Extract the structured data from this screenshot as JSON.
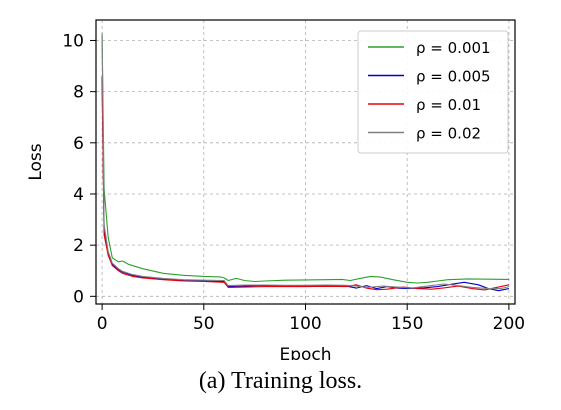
{
  "caption": "(a) Training loss.",
  "chart_data": {
    "type": "line",
    "xlabel": "Epoch",
    "ylabel": "Loss",
    "xlim": [
      -3,
      203
    ],
    "ylim": [
      -0.3,
      10.8
    ],
    "xticks": [
      0,
      50,
      100,
      150,
      200
    ],
    "yticks": [
      0,
      2,
      4,
      6,
      8,
      10
    ],
    "grid": true,
    "legend_position": "upper right",
    "series": [
      {
        "name": "ρ = 0.001",
        "color": "#2ca02c",
        "points": [
          [
            0,
            10.2
          ],
          [
            1,
            4.2
          ],
          [
            3,
            2.3
          ],
          [
            5,
            1.5
          ],
          [
            8,
            1.35
          ],
          [
            10,
            1.38
          ],
          [
            13,
            1.25
          ],
          [
            20,
            1.08
          ],
          [
            30,
            0.9
          ],
          [
            40,
            0.82
          ],
          [
            50,
            0.78
          ],
          [
            58,
            0.76
          ],
          [
            60,
            0.72
          ],
          [
            62,
            0.62
          ],
          [
            66,
            0.7
          ],
          [
            70,
            0.62
          ],
          [
            75,
            0.58
          ],
          [
            80,
            0.6
          ],
          [
            90,
            0.63
          ],
          [
            100,
            0.64
          ],
          [
            110,
            0.65
          ],
          [
            118,
            0.66
          ],
          [
            122,
            0.62
          ],
          [
            128,
            0.72
          ],
          [
            132,
            0.78
          ],
          [
            137,
            0.75
          ],
          [
            143,
            0.65
          ],
          [
            150,
            0.55
          ],
          [
            155,
            0.52
          ],
          [
            160,
            0.55
          ],
          [
            165,
            0.6
          ],
          [
            170,
            0.65
          ],
          [
            180,
            0.68
          ],
          [
            190,
            0.67
          ],
          [
            200,
            0.66
          ]
        ]
      },
      {
        "name": "ρ = 0.005",
        "color": "#0000cc",
        "points": [
          [
            0,
            8.6
          ],
          [
            1,
            2.6
          ],
          [
            3,
            1.7
          ],
          [
            5,
            1.25
          ],
          [
            8,
            1.05
          ],
          [
            10,
            0.95
          ],
          [
            15,
            0.82
          ],
          [
            20,
            0.75
          ],
          [
            30,
            0.68
          ],
          [
            40,
            0.62
          ],
          [
            50,
            0.6
          ],
          [
            60,
            0.58
          ],
          [
            62,
            0.38
          ],
          [
            70,
            0.4
          ],
          [
            80,
            0.42
          ],
          [
            90,
            0.41
          ],
          [
            100,
            0.41
          ],
          [
            110,
            0.42
          ],
          [
            120,
            0.4
          ],
          [
            125,
            0.32
          ],
          [
            130,
            0.42
          ],
          [
            135,
            0.3
          ],
          [
            140,
            0.38
          ],
          [
            145,
            0.32
          ],
          [
            150,
            0.3
          ],
          [
            158,
            0.33
          ],
          [
            165,
            0.38
          ],
          [
            170,
            0.45
          ],
          [
            178,
            0.55
          ],
          [
            185,
            0.45
          ],
          [
            190,
            0.3
          ],
          [
            195,
            0.22
          ],
          [
            200,
            0.3
          ]
        ]
      },
      {
        "name": "ρ = 0.01",
        "color": "#e8000b",
        "points": [
          [
            0,
            8.4
          ],
          [
            1,
            2.4
          ],
          [
            3,
            1.6
          ],
          [
            5,
            1.2
          ],
          [
            8,
            1.0
          ],
          [
            10,
            0.9
          ],
          [
            15,
            0.78
          ],
          [
            20,
            0.72
          ],
          [
            30,
            0.65
          ],
          [
            40,
            0.6
          ],
          [
            50,
            0.58
          ],
          [
            60,
            0.55
          ],
          [
            62,
            0.35
          ],
          [
            70,
            0.36
          ],
          [
            80,
            0.38
          ],
          [
            90,
            0.38
          ],
          [
            100,
            0.38
          ],
          [
            110,
            0.39
          ],
          [
            120,
            0.38
          ],
          [
            125,
            0.45
          ],
          [
            130,
            0.32
          ],
          [
            135,
            0.26
          ],
          [
            140,
            0.28
          ],
          [
            148,
            0.36
          ],
          [
            155,
            0.3
          ],
          [
            162,
            0.28
          ],
          [
            168,
            0.33
          ],
          [
            175,
            0.4
          ],
          [
            182,
            0.3
          ],
          [
            188,
            0.25
          ],
          [
            194,
            0.35
          ],
          [
            200,
            0.45
          ]
        ]
      },
      {
        "name": "ρ = 0.02",
        "color": "#808080",
        "points": [
          [
            0,
            10.3
          ],
          [
            1,
            2.8
          ],
          [
            3,
            1.75
          ],
          [
            5,
            1.3
          ],
          [
            8,
            1.08
          ],
          [
            10,
            0.98
          ],
          [
            15,
            0.85
          ],
          [
            20,
            0.78
          ],
          [
            30,
            0.7
          ],
          [
            40,
            0.65
          ],
          [
            50,
            0.63
          ],
          [
            60,
            0.62
          ],
          [
            62,
            0.42
          ],
          [
            70,
            0.44
          ],
          [
            80,
            0.44
          ],
          [
            90,
            0.43
          ],
          [
            100,
            0.43
          ],
          [
            110,
            0.44
          ],
          [
            120,
            0.43
          ],
          [
            125,
            0.4
          ],
          [
            130,
            0.35
          ],
          [
            138,
            0.4
          ],
          [
            145,
            0.36
          ],
          [
            152,
            0.32
          ],
          [
            160,
            0.4
          ],
          [
            168,
            0.48
          ],
          [
            175,
            0.42
          ],
          [
            182,
            0.35
          ],
          [
            190,
            0.3
          ],
          [
            196,
            0.3
          ],
          [
            200,
            0.38
          ]
        ]
      }
    ]
  }
}
